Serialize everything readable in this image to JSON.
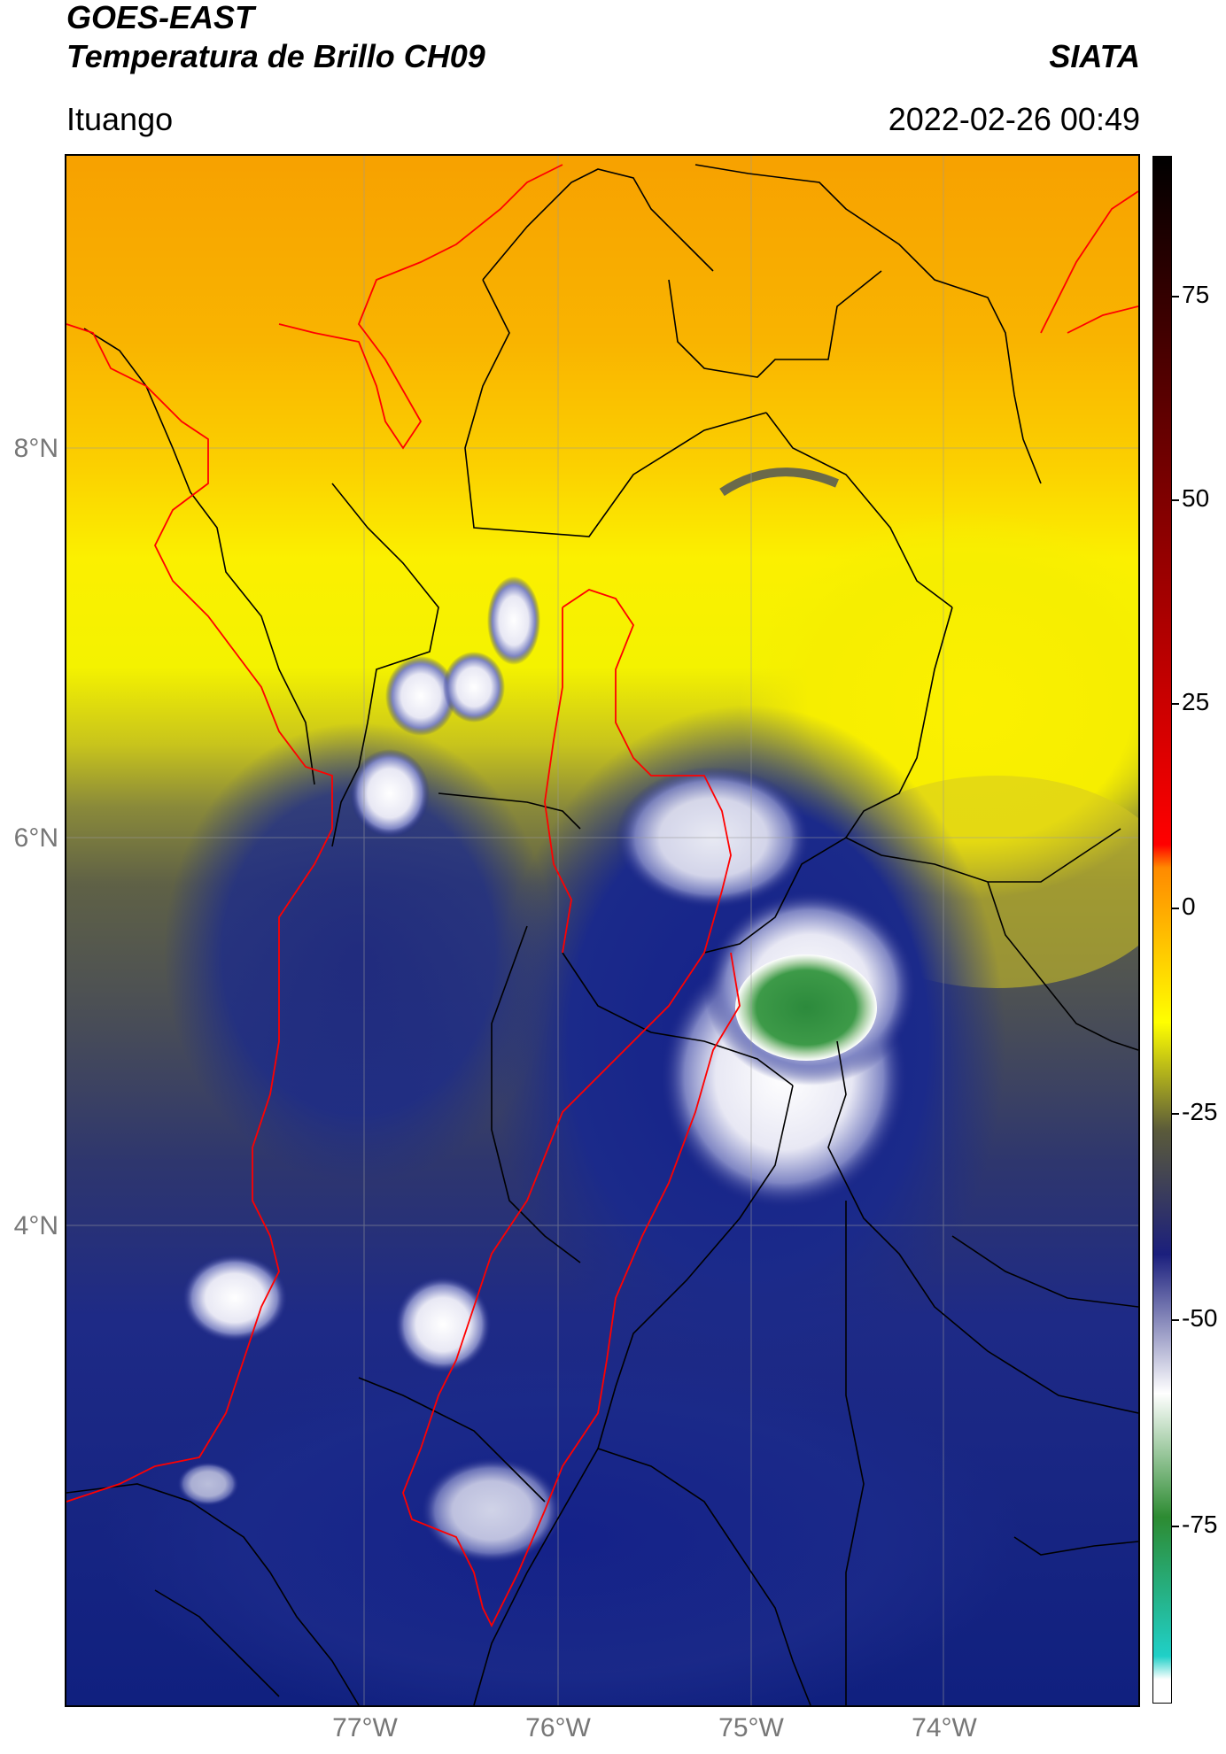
{
  "header": {
    "satellite": "GOES-EAST",
    "product": "Temperatura de Brillo CH09",
    "agency": "SIATA",
    "location": "Ituango",
    "datetime": "2022-02-26 00:49"
  },
  "map": {
    "lat_labels": [
      "8°N",
      "6°N",
      "4°N"
    ],
    "lon_labels": [
      "77°W",
      "76°W",
      "75°W",
      "74°W"
    ],
    "colors": {
      "warm": "#f8a400",
      "yellow": "#fafa00",
      "olive": "#66683f",
      "navy": "#1a2a86",
      "cold_cloud": "#f0f0f8",
      "coldest": "#2f8a3f",
      "boundary_red": "#ff0000",
      "boundary_black": "#000000"
    }
  },
  "colorbar": {
    "labels": [
      "75",
      "50",
      "25",
      "0",
      "-25",
      "-50",
      "-75"
    ],
    "stops": [
      "#000000",
      "#ff0000",
      "#ff8a00",
      "#ffff00",
      "#5a5a3a",
      "#1b1f7d",
      "#ffffff",
      "#2d8b32",
      "#20d0c8",
      "#ffffff"
    ]
  }
}
